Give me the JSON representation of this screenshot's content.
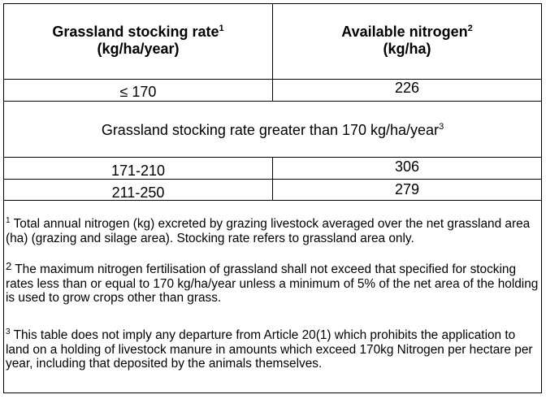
{
  "table": {
    "header": {
      "col1_line1": "Grassland stocking rate",
      "col1_sup": "1",
      "col1_line2": "(kg/ha/year)",
      "col2_line1": "Available nitrogen",
      "col2_sup": "2",
      "col2_line2": "(kg/ha)"
    },
    "rows": [
      {
        "rate": "≤ 170",
        "nitrogen": "226"
      }
    ],
    "section_heading": "Grassland stocking rate greater than 170 kg/ha/year",
    "section_sup": "3",
    "rows_high": [
      {
        "rate": "171-210",
        "nitrogen": "306"
      },
      {
        "rate": "211-250",
        "nitrogen": "279"
      }
    ]
  },
  "footnotes": [
    {
      "marker": "1",
      "text": "Total annual nitrogen (kg) excreted by grazing livestock averaged over the net grassland area (ha) (grazing and silage area).  Stocking rate refers to grassland area only."
    },
    {
      "marker": "2",
      "text": "The maximum nitrogen fertilisation of grassland shall not exceed that specified for stocking rates less than or equal to 170 kg/ha/year unless a minimum of 5% of the net area of the holding is used to grow crops other than grass."
    },
    {
      "marker": "3",
      "text": "This table does not imply any departure from Article 20(1) which prohibits the application to land on a holding of livestock manure in amounts which exceed 170kg Nitrogen per hectare per year, including that deposited by the animals themselves."
    }
  ]
}
